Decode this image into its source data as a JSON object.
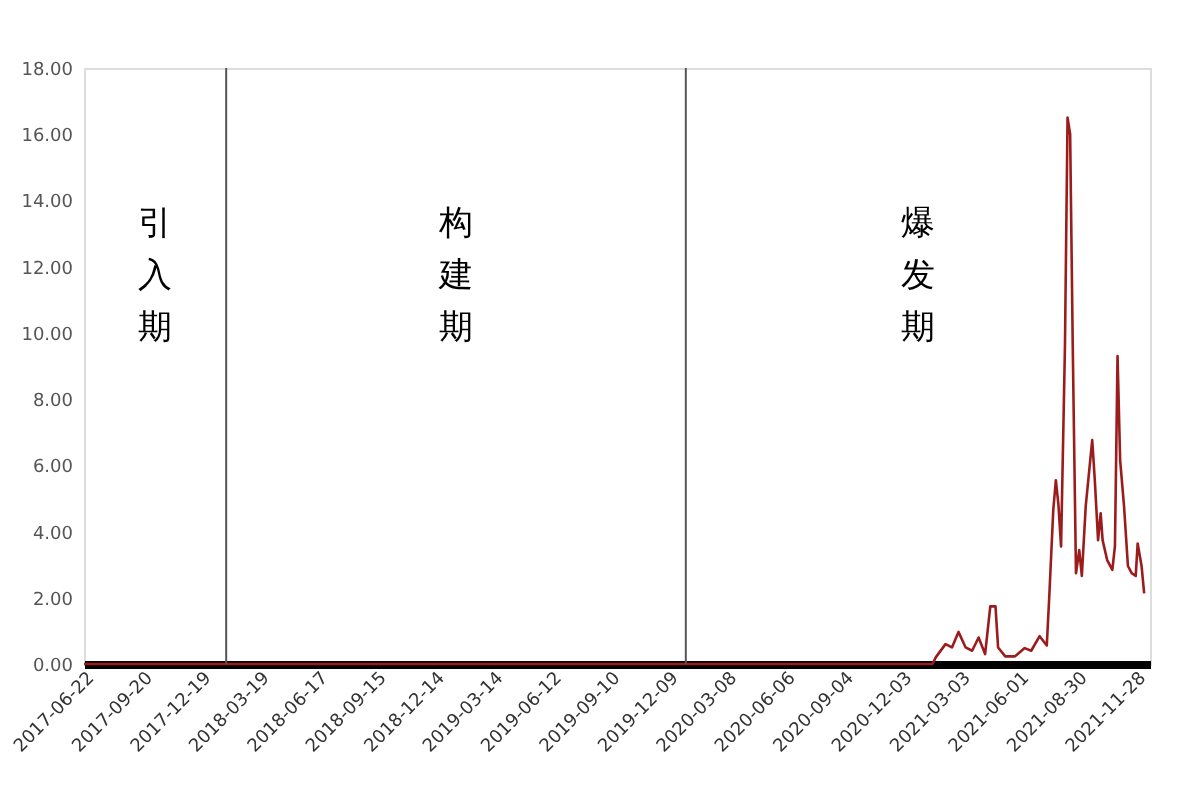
{
  "chart_data": {
    "type": "line",
    "x": [
      "2017-06-22",
      "2020-12-01",
      "2021-01-19",
      "2021-01-24",
      "2021-02-08",
      "2021-02-18",
      "2021-02-28",
      "2021-03-11",
      "2021-03-21",
      "2021-03-31",
      "2021-04-10",
      "2021-04-18",
      "2021-04-26",
      "2021-04-30",
      "2021-05-11",
      "2021-05-26",
      "2021-06-10",
      "2021-06-20",
      "2021-07-03",
      "2021-07-14",
      "2021-07-18",
      "2021-07-24",
      "2021-07-28",
      "2021-08-01",
      "2021-08-05",
      "2021-08-11",
      "2021-08-15",
      "2021-08-19",
      "2021-08-23",
      "2021-08-28",
      "2021-09-02",
      "2021-09-06",
      "2021-09-12",
      "2021-09-22",
      "2021-09-26",
      "2021-10-01",
      "2021-10-05",
      "2021-10-08",
      "2021-10-15",
      "2021-10-23",
      "2021-10-27",
      "2021-10-31",
      "2021-11-04",
      "2021-11-10",
      "2021-11-16",
      "2021-11-22",
      "2021-11-28",
      "2021-12-01",
      "2021-12-07",
      "2021-12-11"
    ],
    "series": [
      {
        "color": "#9b1c1c",
        "values": [
          0,
          0,
          0,
          0.2,
          0.6,
          0.5,
          0.97,
          0.5,
          0.4,
          0.8,
          0.3,
          1.74,
          1.74,
          0.5,
          0.23,
          0.23,
          0.48,
          0.4,
          0.84,
          0.56,
          2.1,
          4.65,
          5.55,
          4.8,
          3.55,
          9.6,
          16.5,
          16.0,
          9.6,
          2.74,
          3.44,
          2.66,
          4.77,
          6.76,
          5.55,
          3.74,
          4.55,
          3.74,
          3.14,
          2.84,
          3.56,
          9.3,
          6.16,
          4.77,
          2.96,
          2.74,
          2.66,
          3.64,
          2.96,
          2.13
        ]
      }
    ],
    "xlim": [
      "2017-06-22",
      "2021-12-20"
    ],
    "xticks": [
      "2017-06-22",
      "2017-09-20",
      "2017-12-19",
      "2018-03-19",
      "2018-06-17",
      "2018-09-15",
      "2018-12-14",
      "2019-03-14",
      "2019-06-12",
      "2019-09-10",
      "2019-12-09",
      "2020-03-08",
      "2020-06-06",
      "2020-09-04",
      "2020-12-03",
      "2021-03-03",
      "2021-06-01",
      "2021-08-30",
      "2021-11-28"
    ],
    "ylim": [
      0,
      18
    ],
    "yticks": [
      {
        "value": 0,
        "label": "0.00"
      },
      {
        "value": 2,
        "label": "2.00"
      },
      {
        "value": 4,
        "label": "4.00"
      },
      {
        "value": 6,
        "label": "6.00"
      },
      {
        "value": 8,
        "label": "8.00"
      },
      {
        "value": 10,
        "label": "10.00"
      },
      {
        "value": 12,
        "label": "12.00"
      },
      {
        "value": 14,
        "label": "14.00"
      },
      {
        "value": 16,
        "label": "16.00"
      },
      {
        "value": 18,
        "label": "18.00"
      }
    ],
    "ref_lines": [
      {
        "axis": "x",
        "value": "2018-01-27",
        "color": "#555555"
      },
      {
        "axis": "x",
        "value": "2020-01-05",
        "color": "#555555"
      }
    ],
    "annotations": [
      "引入期",
      "构建期",
      "爆发期"
    ],
    "grid": false,
    "marker": "none",
    "line_style": "solid"
  }
}
